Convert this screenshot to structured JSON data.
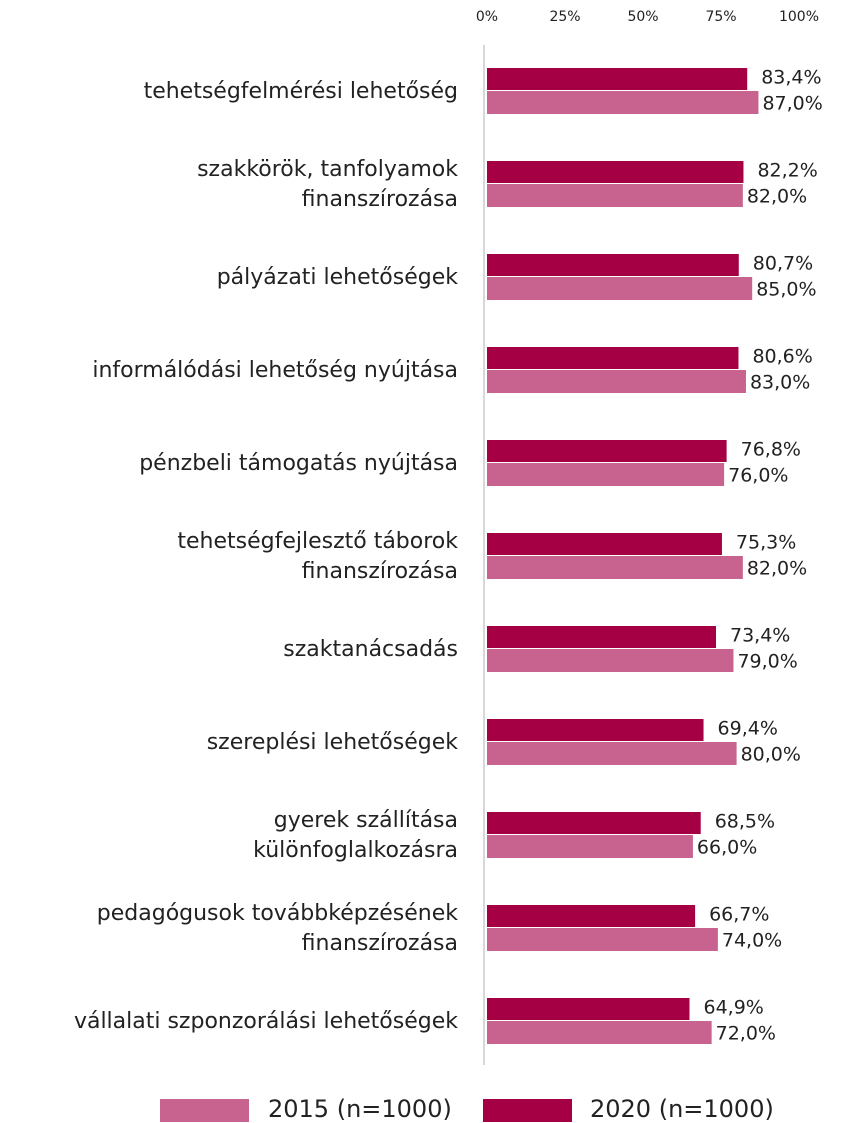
{
  "chart_data": {
    "type": "barh",
    "categories": [
      [
        "tehetségfelmérési lehetőség"
      ],
      [
        "szakkörök, tanfolyamok",
        "finanszírozása"
      ],
      [
        "pályázati lehetőségek"
      ],
      [
        "informálódási lehetőség nyújtása"
      ],
      [
        "pénzbeli támogatás nyújtása"
      ],
      [
        "tehetségfejlesztő táborok",
        "finanszírozása"
      ],
      [
        "szaktanácsadás"
      ],
      [
        "szereplési lehetőségek"
      ],
      [
        "gyerek szállítása",
        "különfoglalkozásra"
      ],
      [
        "pedagógusok továbbképzésének",
        "finanszírozása"
      ],
      [
        "vállalati szponzorálási lehetőségek"
      ]
    ],
    "series": [
      {
        "name": "2015 (n=1000)",
        "color": "#c8638f",
        "values": [
          87.0,
          82.0,
          85.0,
          83.0,
          76.0,
          82.0,
          79.0,
          80.0,
          66.0,
          74.0,
          72.0
        ],
        "value_labels": [
          "87,0%",
          "82,0%",
          "85,0%",
          "83,0%",
          "76,0%",
          "82,0%",
          "79,0%",
          "80,0%",
          "66,0%",
          "74,0%",
          "72,0%"
        ]
      },
      {
        "name": "2020 (n=1000)",
        "color": "#a50044",
        "values": [
          83.4,
          82.2,
          80.7,
          80.6,
          76.8,
          75.3,
          73.4,
          69.4,
          68.5,
          66.7,
          64.9
        ],
        "value_labels": [
          "83,4%",
          "82,2%",
          "80,7%",
          "80,6%",
          "76,8%",
          "75,3%",
          "73,4%",
          "69,4%",
          "68,5%",
          "66,7%",
          "64,9%"
        ]
      }
    ],
    "xlim": [
      0,
      100
    ],
    "xticks": [
      {
        "value": 0,
        "label": "0%"
      },
      {
        "value": 25,
        "label": "25%"
      },
      {
        "value": 50,
        "label": "50%"
      },
      {
        "value": 75,
        "label": "75%"
      },
      {
        "value": 100,
        "label": "100%"
      }
    ]
  }
}
